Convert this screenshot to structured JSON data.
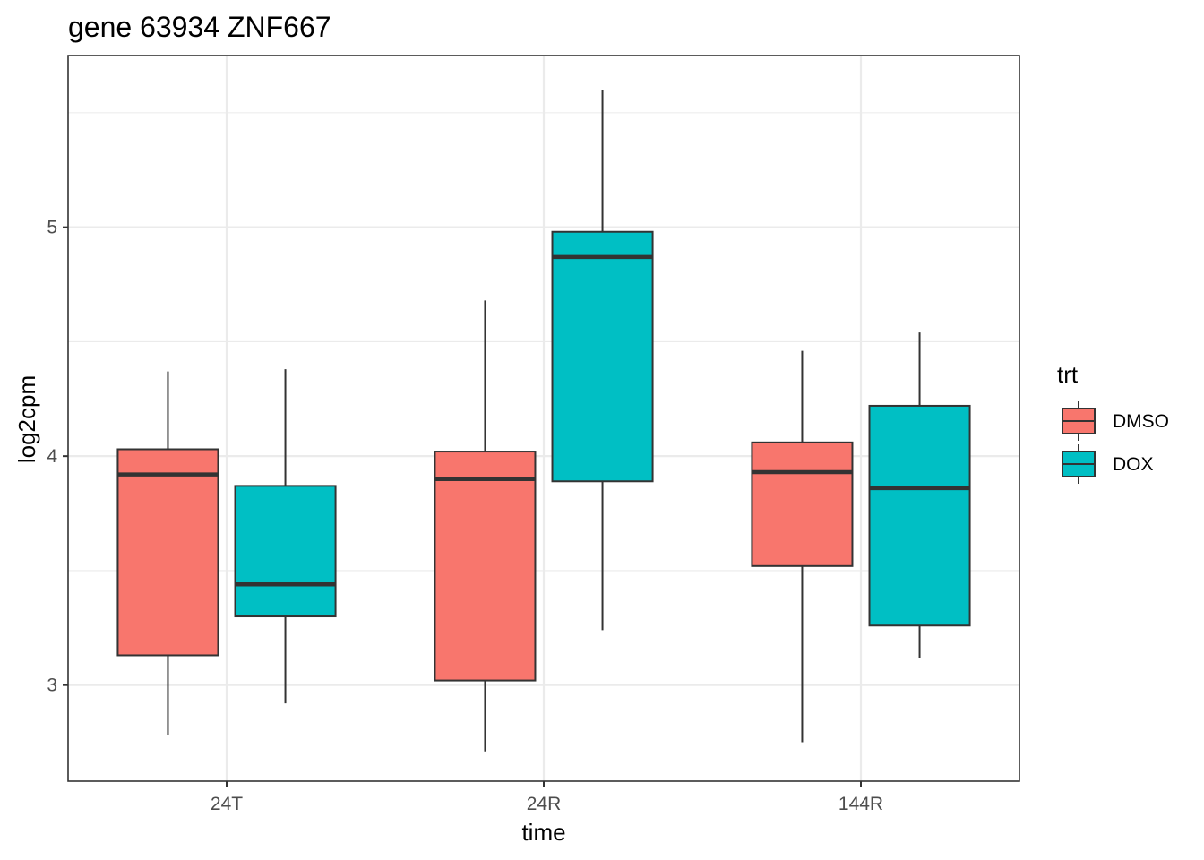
{
  "chart_data": {
    "type": "boxplot",
    "title": "gene 63934 ZNF667",
    "xlabel": "time",
    "ylabel": "log2cpm",
    "categories": [
      "24T",
      "24R",
      "144R"
    ],
    "ylim": [
      2.58,
      5.75
    ],
    "yticks": [
      3,
      4,
      5
    ],
    "grid": true,
    "legend": {
      "title": "trt",
      "position": "right"
    },
    "series": [
      {
        "name": "DMSO",
        "color": "#F8766D",
        "boxes": [
          {
            "min": 2.78,
            "q1": 3.13,
            "median": 3.92,
            "q3": 4.03,
            "max": 4.37
          },
          {
            "min": 2.71,
            "q1": 3.02,
            "median": 3.9,
            "q3": 4.02,
            "max": 4.68
          },
          {
            "min": 2.75,
            "q1": 3.52,
            "median": 3.93,
            "q3": 4.06,
            "max": 4.46
          }
        ]
      },
      {
        "name": "DOX",
        "color": "#00BFC4",
        "boxes": [
          {
            "min": 2.92,
            "q1": 3.3,
            "median": 3.44,
            "q3": 3.87,
            "max": 4.38
          },
          {
            "min": 3.24,
            "q1": 3.89,
            "median": 4.87,
            "q3": 4.98,
            "max": 5.6
          },
          {
            "min": 3.12,
            "q1": 3.26,
            "median": 3.86,
            "q3": 4.22,
            "max": 4.54
          }
        ]
      }
    ]
  }
}
